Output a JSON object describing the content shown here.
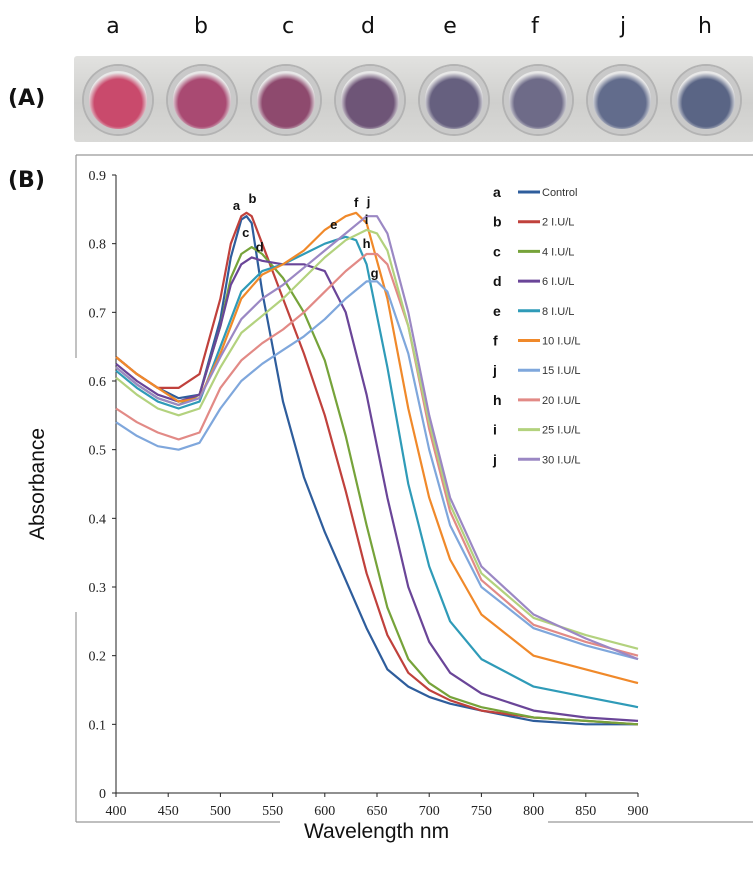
{
  "panel_a": {
    "label": "(A)",
    "wells": [
      {
        "letter": "a",
        "color": "#c94a6c"
      },
      {
        "letter": "b",
        "color": "#a94a72"
      },
      {
        "letter": "c",
        "color": "#8e4a6e"
      },
      {
        "letter": "d",
        "color": "#6e5577"
      },
      {
        "letter": "e",
        "color": "#66607f"
      },
      {
        "letter": "f",
        "color": "#6e6b88"
      },
      {
        "letter": "j",
        "color": "#626c8c"
      },
      {
        "letter": "h",
        "color": "#5a6585"
      }
    ]
  },
  "panel_b": {
    "label": "(B)"
  },
  "chart_data": {
    "type": "line",
    "title": "",
    "xlabel": "Wavelength nm",
    "ylabel": "Absorbance",
    "xlim": [
      400,
      900
    ],
    "ylim": [
      0,
      0.9
    ],
    "xticks": [
      "400",
      "450",
      "500",
      "550",
      "600",
      "650",
      "700",
      "750",
      "800",
      "850",
      "900"
    ],
    "yticks": [
      "0",
      "0.1",
      "0.2",
      "0.3",
      "0.4",
      "0.5",
      "0.6",
      "0.7",
      "0.8",
      "0.9"
    ],
    "legend_position": "top-right",
    "series": [
      {
        "letter": "a",
        "name": "Control",
        "color": "#2e5d9c",
        "peak_label": "a",
        "x": [
          400,
          420,
          440,
          460,
          480,
          500,
          510,
          520,
          525,
          530,
          540,
          560,
          580,
          600,
          620,
          640,
          660,
          680,
          700,
          720,
          750,
          800,
          850,
          900
        ],
        "y": [
          0.635,
          0.61,
          0.59,
          0.575,
          0.58,
          0.69,
          0.78,
          0.835,
          0.84,
          0.83,
          0.73,
          0.57,
          0.46,
          0.38,
          0.31,
          0.24,
          0.18,
          0.155,
          0.14,
          0.13,
          0.12,
          0.105,
          0.1,
          0.1
        ]
      },
      {
        "letter": "b",
        "name": "2 I.U/L",
        "color": "#c0413c",
        "peak_label": "b",
        "x": [
          400,
          420,
          440,
          460,
          480,
          500,
          510,
          520,
          525,
          530,
          540,
          560,
          580,
          600,
          620,
          640,
          660,
          680,
          700,
          720,
          750,
          800,
          850,
          900
        ],
        "y": [
          0.635,
          0.61,
          0.59,
          0.59,
          0.61,
          0.72,
          0.8,
          0.84,
          0.845,
          0.84,
          0.8,
          0.72,
          0.64,
          0.55,
          0.44,
          0.32,
          0.23,
          0.175,
          0.15,
          0.135,
          0.12,
          0.11,
          0.105,
          0.1
        ]
      },
      {
        "letter": "c",
        "name": "4 I.U/L",
        "color": "#76a33a",
        "peak_label": "c",
        "x": [
          400,
          420,
          440,
          460,
          480,
          500,
          510,
          520,
          530,
          540,
          560,
          580,
          600,
          620,
          640,
          660,
          680,
          700,
          720,
          750,
          800,
          850,
          900
        ],
        "y": [
          0.62,
          0.595,
          0.575,
          0.565,
          0.58,
          0.68,
          0.75,
          0.785,
          0.795,
          0.785,
          0.75,
          0.7,
          0.63,
          0.52,
          0.39,
          0.27,
          0.195,
          0.16,
          0.14,
          0.125,
          0.11,
          0.105,
          0.1
        ]
      },
      {
        "letter": "d",
        "name": "6 I.U/L",
        "color": "#6a4598",
        "peak_label": "d",
        "x": [
          400,
          420,
          440,
          460,
          480,
          500,
          510,
          520,
          530,
          540,
          560,
          580,
          600,
          620,
          640,
          660,
          680,
          700,
          720,
          750,
          800,
          850,
          900
        ],
        "y": [
          0.625,
          0.6,
          0.58,
          0.57,
          0.58,
          0.68,
          0.74,
          0.77,
          0.78,
          0.775,
          0.77,
          0.77,
          0.76,
          0.7,
          0.58,
          0.43,
          0.3,
          0.22,
          0.175,
          0.145,
          0.12,
          0.11,
          0.105
        ]
      },
      {
        "letter": "e",
        "name": "8 I.U/L",
        "color": "#2f9bb8",
        "peak_label": "e",
        "x": [
          400,
          420,
          440,
          460,
          480,
          500,
          520,
          540,
          560,
          580,
          600,
          620,
          630,
          640,
          660,
          680,
          700,
          720,
          750,
          800,
          850,
          900
        ],
        "y": [
          0.615,
          0.59,
          0.57,
          0.56,
          0.57,
          0.65,
          0.73,
          0.76,
          0.77,
          0.785,
          0.8,
          0.81,
          0.805,
          0.77,
          0.62,
          0.45,
          0.33,
          0.25,
          0.195,
          0.155,
          0.14,
          0.125
        ]
      },
      {
        "letter": "f",
        "name": "10 I.U/L",
        "color": "#f0892a",
        "peak_label": "f",
        "x": [
          400,
          420,
          440,
          460,
          480,
          500,
          520,
          540,
          560,
          580,
          600,
          620,
          630,
          640,
          660,
          680,
          700,
          720,
          750,
          800,
          850,
          900
        ],
        "y": [
          0.635,
          0.61,
          0.59,
          0.57,
          0.575,
          0.64,
          0.72,
          0.755,
          0.77,
          0.79,
          0.82,
          0.84,
          0.845,
          0.83,
          0.72,
          0.56,
          0.43,
          0.34,
          0.26,
          0.2,
          0.18,
          0.16
        ]
      },
      {
        "letter": "j",
        "name": "15 I.U/L",
        "color": "#7fa7dc",
        "peak_label": "g",
        "x": [
          400,
          420,
          440,
          460,
          480,
          500,
          520,
          540,
          560,
          580,
          600,
          620,
          640,
          650,
          660,
          680,
          700,
          720,
          750,
          800,
          850,
          900
        ],
        "y": [
          0.54,
          0.52,
          0.505,
          0.5,
          0.51,
          0.56,
          0.6,
          0.625,
          0.645,
          0.665,
          0.69,
          0.72,
          0.745,
          0.745,
          0.73,
          0.64,
          0.5,
          0.39,
          0.3,
          0.24,
          0.215,
          0.195
        ]
      },
      {
        "letter": "h",
        "name": "20 I.U/L",
        "color": "#e28a86",
        "peak_label": "h",
        "x": [
          400,
          420,
          440,
          460,
          480,
          500,
          520,
          540,
          560,
          580,
          600,
          620,
          640,
          650,
          660,
          680,
          700,
          720,
          750,
          800,
          850,
          900
        ],
        "y": [
          0.56,
          0.54,
          0.525,
          0.515,
          0.525,
          0.59,
          0.63,
          0.655,
          0.675,
          0.7,
          0.73,
          0.76,
          0.785,
          0.785,
          0.77,
          0.68,
          0.53,
          0.41,
          0.31,
          0.245,
          0.22,
          0.2
        ]
      },
      {
        "letter": "i",
        "name": "25 I.U/L",
        "color": "#b3d27e",
        "peak_label": "i",
        "x": [
          400,
          420,
          440,
          460,
          480,
          500,
          520,
          540,
          560,
          580,
          600,
          620,
          640,
          650,
          660,
          680,
          700,
          720,
          750,
          800,
          850,
          900
        ],
        "y": [
          0.605,
          0.58,
          0.56,
          0.55,
          0.56,
          0.62,
          0.67,
          0.695,
          0.72,
          0.75,
          0.78,
          0.805,
          0.82,
          0.815,
          0.79,
          0.68,
          0.54,
          0.42,
          0.32,
          0.255,
          0.23,
          0.21
        ]
      },
      {
        "letter": "j",
        "name": "30 I.U/L",
        "color": "#9b88c4",
        "peak_label": "j",
        "x": [
          400,
          420,
          440,
          460,
          480,
          500,
          520,
          540,
          560,
          580,
          600,
          620,
          640,
          650,
          660,
          680,
          700,
          720,
          750,
          800,
          850,
          900
        ],
        "y": [
          0.62,
          0.595,
          0.575,
          0.565,
          0.575,
          0.635,
          0.69,
          0.72,
          0.74,
          0.765,
          0.79,
          0.815,
          0.84,
          0.84,
          0.815,
          0.7,
          0.55,
          0.43,
          0.33,
          0.26,
          0.225,
          0.195
        ]
      }
    ]
  }
}
